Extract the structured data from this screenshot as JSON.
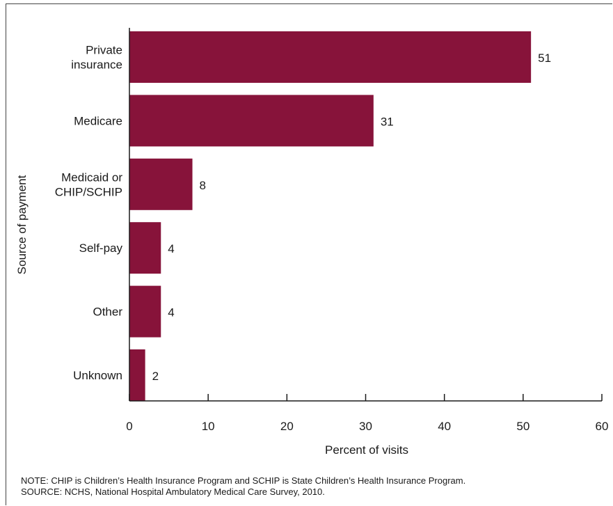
{
  "chart_data": {
    "type": "bar",
    "orientation": "horizontal",
    "categories": [
      [
        "Private",
        "insurance"
      ],
      [
        "Medicare"
      ],
      [
        "Medicaid or",
        "CHIP/SCHIP"
      ],
      [
        "Self-pay"
      ],
      [
        "Other"
      ],
      [
        "Unknown"
      ]
    ],
    "values": [
      51,
      31,
      8,
      4,
      4,
      2
    ],
    "value_labels": [
      "51",
      "31",
      "8",
      "4",
      "4",
      "2"
    ],
    "xlabel": "Percent of visits",
    "ylabel": "Source of payment",
    "xlim": [
      0,
      60
    ],
    "xticks": [
      0,
      10,
      20,
      30,
      40,
      50,
      60
    ],
    "grid": false,
    "bar_color": "#87133a"
  },
  "notes": {
    "note": "NOTE: CHIP is Children’s Health Insurance Program and SCHIP is State Children’s Health Insurance Program.",
    "source": "SOURCE: NCHS, National Hospital Ambulatory Medical Care Survey, 2010."
  }
}
